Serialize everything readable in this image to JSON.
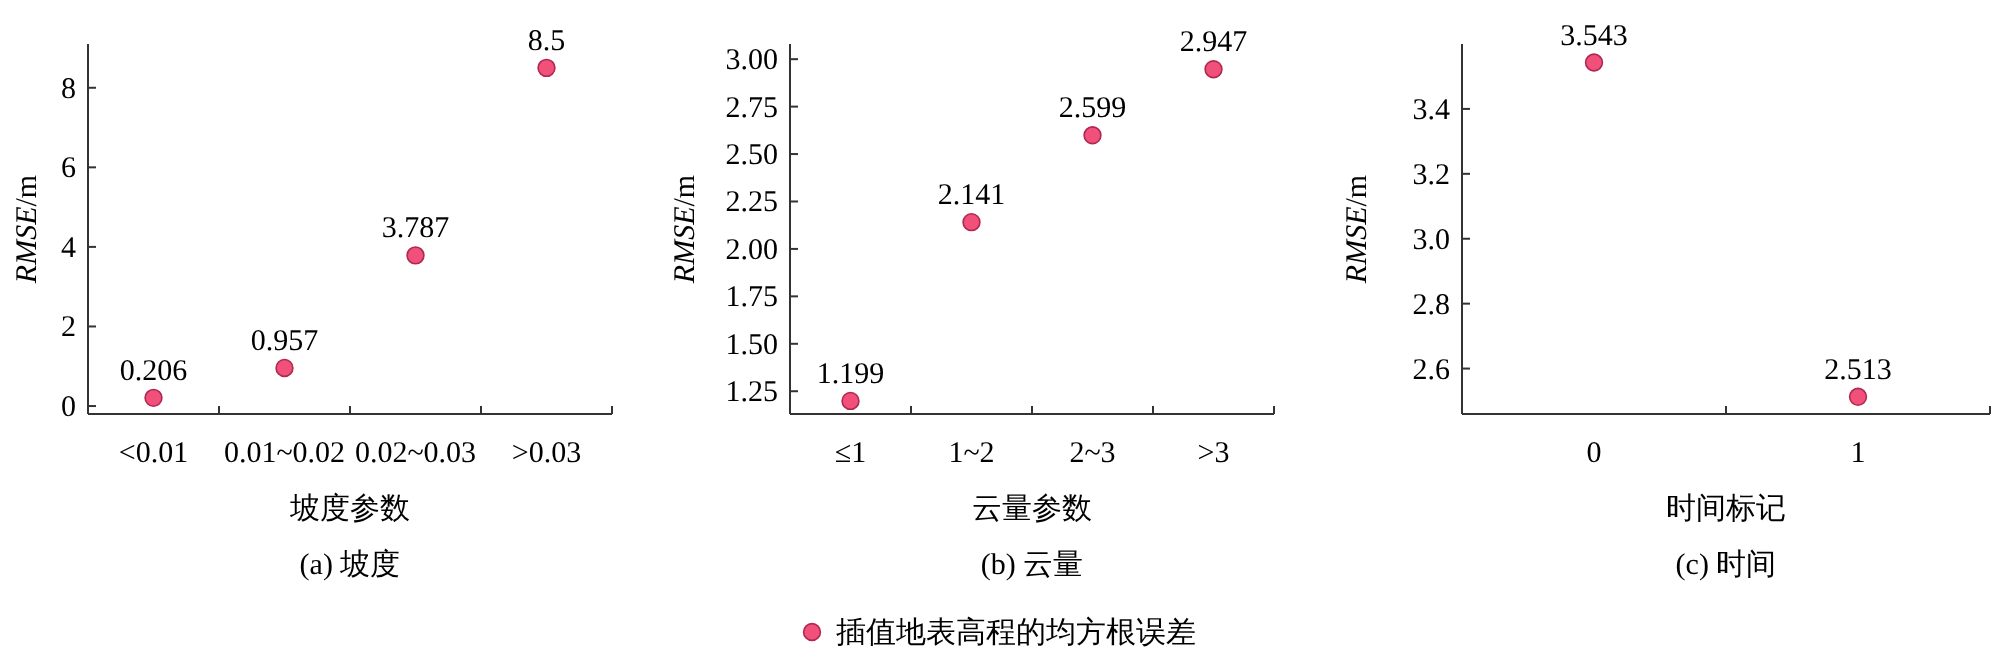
{
  "chart_data": [
    {
      "type": "scatter",
      "title": "(a) 坡度",
      "xlabel": "坡度参数",
      "ylabel": "*RMSE*/m",
      "categories": [
        "<0.01",
        "0.01~0.02",
        "0.02~0.03",
        ">0.03"
      ],
      "ylim": [
        -0.2,
        9.1
      ],
      "yticks": [
        0,
        2,
        4,
        6,
        8
      ],
      "marker": "circle",
      "data_labels": true,
      "series": [
        {
          "color": "#f0507a",
          "values": [
            0.206,
            0.957,
            3.787,
            8.5
          ]
        }
      ]
    },
    {
      "type": "scatter",
      "title": "(b) 云量",
      "xlabel": "云量参数",
      "ylabel": "*RMSE*/m",
      "categories": [
        "≤1",
        "1~2",
        "2~3",
        ">3"
      ],
      "ylim": [
        1.13,
        3.08
      ],
      "yticks": [
        {
          "value": 1.25,
          "label": "1.25"
        },
        {
          "value": 1.5,
          "label": "1.50"
        },
        {
          "value": 1.75,
          "label": "1.75"
        },
        {
          "value": 2,
          "label": "2.00"
        },
        {
          "value": 2.25,
          "label": "2.25"
        },
        {
          "value": 2.5,
          "label": "2.50"
        },
        {
          "value": 2.75,
          "label": "2.75"
        },
        {
          "value": 3,
          "label": "3.00"
        }
      ],
      "marker": "circle",
      "data_labels": true,
      "legend": "bottom",
      "series": [
        {
          "name": "插值地表高程的均方根误差",
          "color": "#f0507a",
          "values": [
            1.199,
            2.141,
            2.599,
            2.947
          ]
        }
      ]
    },
    {
      "type": "scatter",
      "title": "(c) 时间",
      "xlabel": "时间标记",
      "ylabel": "*RMSE*/m",
      "categories": [
        "0",
        "1"
      ],
      "ylim": [
        2.46,
        3.6
      ],
      "yticks": [
        2.6,
        2.8,
        {
          "value": 3,
          "label": "3.0"
        },
        3.2,
        3.4
      ],
      "marker": "circle",
      "data_labels": true,
      "series": [
        {
          "color": "#f0507a",
          "values": [
            3.543,
            2.513
          ]
        }
      ]
    }
  ]
}
